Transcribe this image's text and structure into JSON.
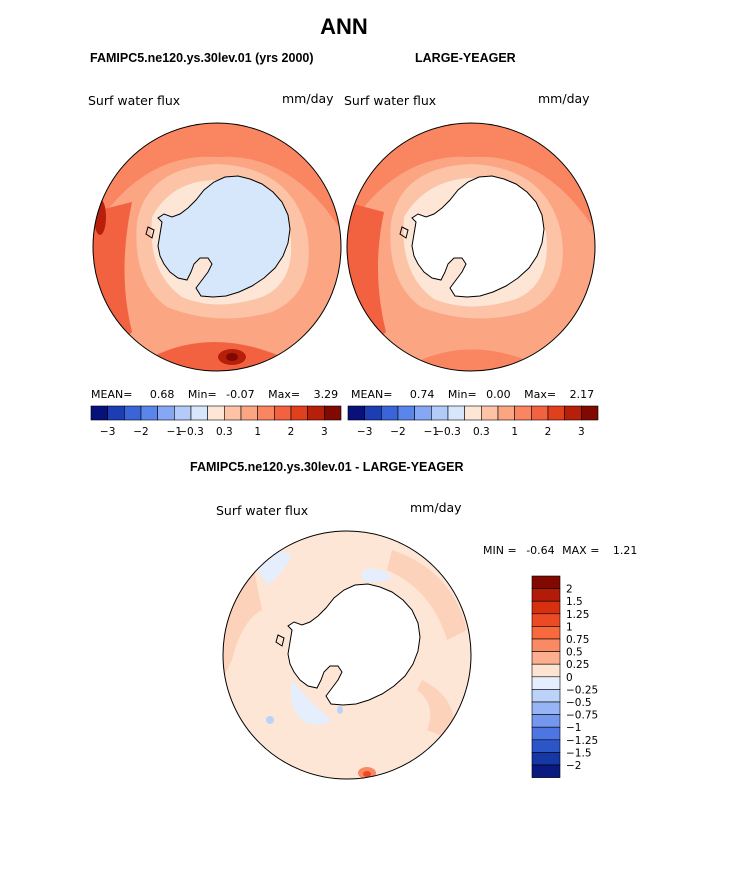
{
  "header": {
    "title": "ANN"
  },
  "panels": [
    {
      "id": "left",
      "case_title": "FAMIPC5.ne120.ys.30lev.01 (yrs 2000)",
      "variable": "Surf water flux",
      "units": "mm/day",
      "stats": {
        "mean_label": "MEAN=",
        "mean": "0.68",
        "min_label": "Min=",
        "min": "-0.07",
        "max_label": "Max=",
        "max": "3.29"
      },
      "ocean_color": "#fcc3a7",
      "land_color": "#d6e7fc",
      "has_land_field": true
    },
    {
      "id": "right",
      "case_title": "LARGE-YEAGER",
      "variable": "Surf water flux",
      "units": "mm/day",
      "stats": {
        "mean_label": "MEAN=",
        "mean": "0.74",
        "min_label": "Min=",
        "min": "0.00",
        "max_label": "Max=",
        "max": "2.17"
      },
      "ocean_color": "#fcc3a7",
      "land_color": "#ffffff",
      "has_land_field": false
    }
  ],
  "top_colorbar": {
    "colors": [
      "#08107a",
      "#1c3db4",
      "#3a64d8",
      "#5a86ec",
      "#86a8f4",
      "#b3cbf8",
      "#d8e6fc",
      "#fde6d6",
      "#fcc3a7",
      "#fba583",
      "#f98561",
      "#f26240",
      "#e0401c",
      "#b71f0b",
      "#800a02"
    ],
    "tick_labels": [
      "−3",
      "−2",
      "−1",
      "−0.3",
      "0.3",
      "1",
      "2",
      "3"
    ],
    "tick_boundaries": [
      1,
      3,
      5,
      6,
      8,
      10,
      12,
      14
    ]
  },
  "difference": {
    "title": "FAMIPC5.ne120.ys.30lev.01 - LARGE-YEAGER",
    "variable": "Surf water flux",
    "units": "mm/day",
    "stats": {
      "min_label": "MIN =",
      "min": "-0.64",
      "max_label": "MAX =",
      "max": "1.21"
    },
    "ocean_color": "#fde6d6",
    "colorbar": {
      "colors": [
        "#800a02",
        "#b11b07",
        "#d6300f",
        "#ec4a24",
        "#f8693e",
        "#fa8a63",
        "#fcae8e",
        "#fde3d1",
        "#e4eefc",
        "#bcd2f8",
        "#97b4f4",
        "#7597ee",
        "#4d76e2",
        "#2c55c8",
        "#1637a6",
        "#0a1a80"
      ],
      "labels": [
        "2",
        "1.5",
        "1.25",
        "1",
        "0.75",
        "0.5",
        "0.25",
        "0",
        "−0.25",
        "−0.5",
        "−0.75",
        "−1",
        "−1.25",
        "−1.5",
        "−2"
      ]
    }
  }
}
